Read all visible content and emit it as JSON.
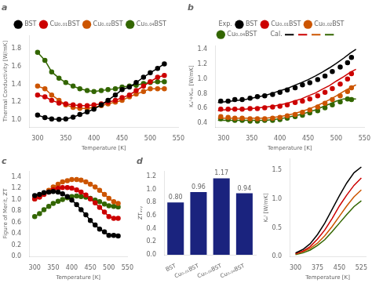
{
  "chart_data": [
    {
      "type": "line",
      "title": "a",
      "xlabel": "Temperature [K]",
      "ylabel": "Thermal Conductivity [W/mK]",
      "xlim": [
        285,
        550
      ],
      "ylim": [
        0.92,
        1.95
      ],
      "xticks": [
        300,
        350,
        400,
        450,
        500,
        550
      ],
      "yticks": [
        {
          "value": 1.0,
          "label": "1.0"
        },
        1.2,
        1.4,
        1.6,
        1.8
      ],
      "grid": false,
      "legend": "top",
      "x": [
        300,
        313,
        325,
        338,
        350,
        363,
        375,
        388,
        400,
        413,
        425,
        438,
        450,
        463,
        475,
        488,
        500,
        513,
        525
      ],
      "series": [
        {
          "name": "BST",
          "color": "#000000",
          "marker": "circle",
          "line_style": "solid",
          "values": [
            1.055,
            1.025,
            1.01,
            1.005,
            1.01,
            1.03,
            1.06,
            1.09,
            1.12,
            1.17,
            1.22,
            1.28,
            1.34,
            1.37,
            1.42,
            1.48,
            1.53,
            1.58,
            1.63
          ]
        },
        {
          "name": "Cu₀.₀₁BST",
          "color": "#cc0000",
          "marker": "circle",
          "line_style": "solid",
          "values": [
            1.28,
            1.26,
            1.22,
            1.19,
            1.18,
            1.17,
            1.16,
            1.16,
            1.17,
            1.18,
            1.2,
            1.22,
            1.25,
            1.28,
            1.33,
            1.38,
            1.43,
            1.48,
            1.5
          ]
        },
        {
          "name": "Cu₀.₀₂BST",
          "color": "#cc5500",
          "marker": "circle",
          "line_style": "solid",
          "values": [
            1.38,
            1.35,
            1.28,
            1.22,
            1.17,
            1.14,
            1.13,
            1.13,
            1.14,
            1.16,
            1.18,
            1.2,
            1.22,
            1.26,
            1.29,
            1.32,
            1.35,
            1.35,
            1.35
          ]
        },
        {
          "name": "Cu₀.₀₄BST",
          "color": "#336600",
          "marker": "circle",
          "line_style": "solid",
          "values": [
            1.76,
            1.67,
            1.54,
            1.47,
            1.42,
            1.38,
            1.35,
            1.33,
            1.32,
            1.33,
            1.34,
            1.35,
            1.37,
            1.38,
            1.39,
            1.41,
            1.42,
            1.43,
            1.43
          ]
        }
      ]
    },
    {
      "type": "line",
      "title": "b",
      "xlabel": "Temperature [K]",
      "ylabel": "Kₒᴵ+Kₗₐₜ [W/mK]",
      "xlim": [
        285,
        550
      ],
      "ylim": [
        0.35,
        1.45
      ],
      "xticks": [
        300,
        350,
        400,
        450,
        500,
        550
      ],
      "yticks": [
        0.4,
        0.6,
        0.8,
        {
          "value": 1.0,
          "label": "1.0"
        },
        1.2,
        1.4
      ],
      "grid": false,
      "legend": "top",
      "legend_headers": [
        "Exp.",
        "Cal."
      ],
      "series": [
        {
          "name": "BST",
          "color": "#000000",
          "type": "scatter",
          "marker": "circle",
          "x": [
            295,
            308,
            320,
            333,
            347,
            360,
            373,
            387,
            400,
            413,
            427,
            440,
            453,
            467,
            480,
            493,
            507,
            520,
            527
          ],
          "values": [
            0.7,
            0.7,
            0.72,
            0.72,
            0.74,
            0.76,
            0.77,
            0.79,
            0.82,
            0.85,
            0.88,
            0.92,
            0.95,
            0.99,
            1.04,
            1.1,
            1.16,
            1.22,
            1.29
          ]
        },
        {
          "color": "#000000",
          "type": "line",
          "line_style": "solid",
          "x": [
            290,
            300,
            313,
            325,
            338,
            350,
            363,
            375,
            388,
            400,
            413,
            425,
            438,
            450,
            463,
            475,
            488,
            500,
            513,
            525,
            535
          ],
          "values": [
            0.68,
            0.69,
            0.7,
            0.71,
            0.72,
            0.74,
            0.76,
            0.78,
            0.81,
            0.84,
            0.87,
            0.91,
            0.95,
            0.99,
            1.04,
            1.09,
            1.15,
            1.21,
            1.28,
            1.35,
            1.4
          ]
        },
        {
          "name": "Cu₀.₀₁BST",
          "color": "#cc0000",
          "type": "scatter",
          "marker": "circle",
          "x": [
            295,
            308,
            320,
            333,
            347,
            360,
            373,
            387,
            400,
            413,
            427,
            440,
            453,
            467,
            480,
            493,
            507,
            520,
            527
          ],
          "values": [
            0.59,
            0.59,
            0.59,
            0.59,
            0.6,
            0.6,
            0.61,
            0.62,
            0.63,
            0.65,
            0.68,
            0.7,
            0.73,
            0.77,
            0.82,
            0.87,
            0.93,
            1.0,
            1.07
          ]
        },
        {
          "color": "#cc0000",
          "type": "line",
          "line_style": "solid",
          "x": [
            290,
            300,
            313,
            325,
            338,
            350,
            363,
            375,
            388,
            400,
            413,
            425,
            438,
            450,
            463,
            475,
            488,
            500,
            513,
            525,
            535
          ],
          "values": [
            0.57,
            0.58,
            0.59,
            0.59,
            0.59,
            0.6,
            0.61,
            0.62,
            0.63,
            0.65,
            0.67,
            0.7,
            0.73,
            0.77,
            0.81,
            0.86,
            0.91,
            0.97,
            1.03,
            1.09,
            1.13
          ]
        },
        {
          "name": "Cu₀.₀₂BST",
          "color": "#cc5500",
          "type": "scatter",
          "marker": "circle",
          "x": [
            295,
            308,
            320,
            333,
            347,
            360,
            373,
            387,
            400,
            413,
            427,
            440,
            453,
            467,
            480,
            493,
            507,
            520,
            527
          ],
          "values": [
            0.49,
            0.48,
            0.47,
            0.47,
            0.46,
            0.46,
            0.46,
            0.47,
            0.48,
            0.5,
            0.52,
            0.55,
            0.58,
            0.62,
            0.67,
            0.72,
            0.77,
            0.83,
            0.88
          ]
        },
        {
          "color": "#cc5500",
          "type": "line",
          "line_style": "solid",
          "x": [
            290,
            300,
            313,
            325,
            338,
            350,
            363,
            375,
            388,
            400,
            413,
            425,
            438,
            450,
            463,
            475,
            488,
            500,
            513,
            525,
            535
          ],
          "values": [
            0.47,
            0.47,
            0.47,
            0.47,
            0.47,
            0.47,
            0.47,
            0.47,
            0.48,
            0.49,
            0.51,
            0.53,
            0.56,
            0.59,
            0.63,
            0.67,
            0.72,
            0.77,
            0.83,
            0.88,
            0.92
          ]
        },
        {
          "name": "Cu₀.₀₄BST",
          "color": "#336600",
          "type": "scatter",
          "marker": "circle",
          "x": [
            295,
            308,
            320,
            333,
            347,
            360,
            373,
            387,
            400,
            413,
            427,
            440,
            453,
            467,
            480,
            493,
            507,
            520,
            527
          ],
          "values": [
            0.46,
            0.45,
            0.44,
            0.44,
            0.43,
            0.43,
            0.44,
            0.44,
            0.45,
            0.47,
            0.49,
            0.51,
            0.54,
            0.57,
            0.61,
            0.65,
            0.69,
            0.73,
            0.72
          ]
        },
        {
          "color": "#336600",
          "type": "line",
          "line_style": "solid",
          "x": [
            290,
            300,
            313,
            325,
            338,
            350,
            363,
            375,
            388,
            400,
            413,
            425,
            438,
            450,
            463,
            475,
            488,
            500,
            513,
            525,
            535
          ],
          "values": [
            0.44,
            0.44,
            0.44,
            0.44,
            0.44,
            0.44,
            0.44,
            0.44,
            0.45,
            0.46,
            0.48,
            0.5,
            0.52,
            0.55,
            0.58,
            0.62,
            0.66,
            0.7,
            0.73,
            0.73,
            0.73
          ]
        }
      ]
    },
    {
      "type": "line",
      "xlabel": "Temperature [K]",
      "ylabel": "Kₒᴵ [W/mK]",
      "xlim": [
        280,
        540
      ],
      "ylim": [
        0.0,
        1.7
      ],
      "xticks": [
        300,
        375,
        450,
        525
      ],
      "yticks": [
        {
          "value": 0.0,
          "label": "0.0"
        },
        0.5,
        {
          "value": 1.0,
          "label": "1.0"
        },
        1.5
      ],
      "grid": false,
      "x": [
        300,
        325,
        350,
        375,
        400,
        425,
        450,
        475,
        500,
        525
      ],
      "series": [
        {
          "color": "#000000",
          "line_style": "solid",
          "values": [
            0.06,
            0.12,
            0.22,
            0.38,
            0.58,
            0.82,
            1.06,
            1.28,
            1.46,
            1.56
          ]
        },
        {
          "color": "#cc0000",
          "line_style": "solid",
          "values": [
            0.05,
            0.09,
            0.17,
            0.3,
            0.46,
            0.66,
            0.88,
            1.07,
            1.24,
            1.37
          ]
        },
        {
          "color": "#cc5500",
          "line_style": "solid",
          "values": [
            0.04,
            0.08,
            0.14,
            0.23,
            0.36,
            0.52,
            0.7,
            0.88,
            1.04,
            1.16
          ]
        },
        {
          "color": "#336600",
          "line_style": "solid",
          "values": [
            0.03,
            0.06,
            0.11,
            0.19,
            0.29,
            0.43,
            0.58,
            0.73,
            0.87,
            0.97
          ]
        }
      ]
    },
    {
      "type": "line",
      "title": "c",
      "xlabel": "Temperature [K]",
      "ylabel": "Figure of Merit, ZT",
      "xlim": [
        285,
        550
      ],
      "ylim": [
        0.0,
        1.5
      ],
      "xticks": [
        300,
        350,
        400,
        450,
        500,
        550
      ],
      "yticks": [
        {
          "value": 0.0,
          "label": "0.0"
        },
        0.2,
        0.4,
        0.6,
        0.8,
        {
          "value": 1.0,
          "label": "1.0"
        },
        1.2,
        1.4
      ],
      "grid": false,
      "x": [
        300,
        313,
        325,
        338,
        350,
        363,
        375,
        388,
        400,
        413,
        425,
        438,
        450,
        463,
        475,
        488,
        500,
        513,
        525
      ],
      "series": [
        {
          "name": "BST",
          "color": "#000000",
          "marker": "circle",
          "line_style": "solid",
          "values": [
            1.07,
            1.09,
            1.12,
            1.13,
            1.14,
            1.13,
            1.1,
            1.05,
            0.99,
            0.91,
            0.82,
            0.73,
            0.63,
            0.55,
            0.48,
            0.43,
            0.37,
            0.37,
            0.36
          ]
        },
        {
          "name": "Cu₀.₀₁BST",
          "color": "#cc0000",
          "marker": "circle",
          "line_style": "solid",
          "values": [
            1.01,
            1.04,
            1.09,
            1.13,
            1.17,
            1.2,
            1.21,
            1.21,
            1.2,
            1.17,
            1.13,
            1.08,
            1.01,
            0.94,
            0.86,
            0.78,
            0.7,
            0.67,
            0.67
          ]
        },
        {
          "name": "Cu₀.₀₂BST",
          "color": "#cc5500",
          "marker": "circle",
          "line_style": "solid",
          "values": [
            1.01,
            1.05,
            1.1,
            1.16,
            1.22,
            1.27,
            1.31,
            1.33,
            1.35,
            1.35,
            1.34,
            1.31,
            1.27,
            1.22,
            1.16,
            1.09,
            1.02,
            0.96,
            0.93
          ]
        },
        {
          "name": "Cu₀.₀₄BST",
          "color": "#336600",
          "marker": "circle",
          "line_style": "solid",
          "values": [
            0.7,
            0.75,
            0.82,
            0.88,
            0.93,
            0.97,
            1.0,
            1.03,
            1.05,
            1.06,
            1.05,
            1.04,
            1.02,
            0.99,
            0.96,
            0.92,
            0.89,
            0.88,
            0.87
          ]
        }
      ]
    },
    {
      "type": "bar",
      "title": "d",
      "ylabel": "ZTₐᵥᵧ",
      "categories": [
        "BST",
        "Cu₀.₀₁BST",
        "Cu₀.₀₂BST",
        "Cu₀.₀₄BST"
      ],
      "values": [
        0.8,
        0.96,
        1.17,
        0.94
      ],
      "value_labels": [
        "0.80",
        "0.96",
        "1.17",
        "0.94"
      ],
      "data_labels": true,
      "color": "#1a237e",
      "ylim": [
        0,
        1.28
      ],
      "yticks": [
        {
          "value": 0.0,
          "label": "0.0"
        },
        0.2,
        0.4,
        0.6,
        0.8,
        {
          "value": 1.0,
          "label": "1.0"
        },
        1.2
      ],
      "grid": false
    }
  ]
}
